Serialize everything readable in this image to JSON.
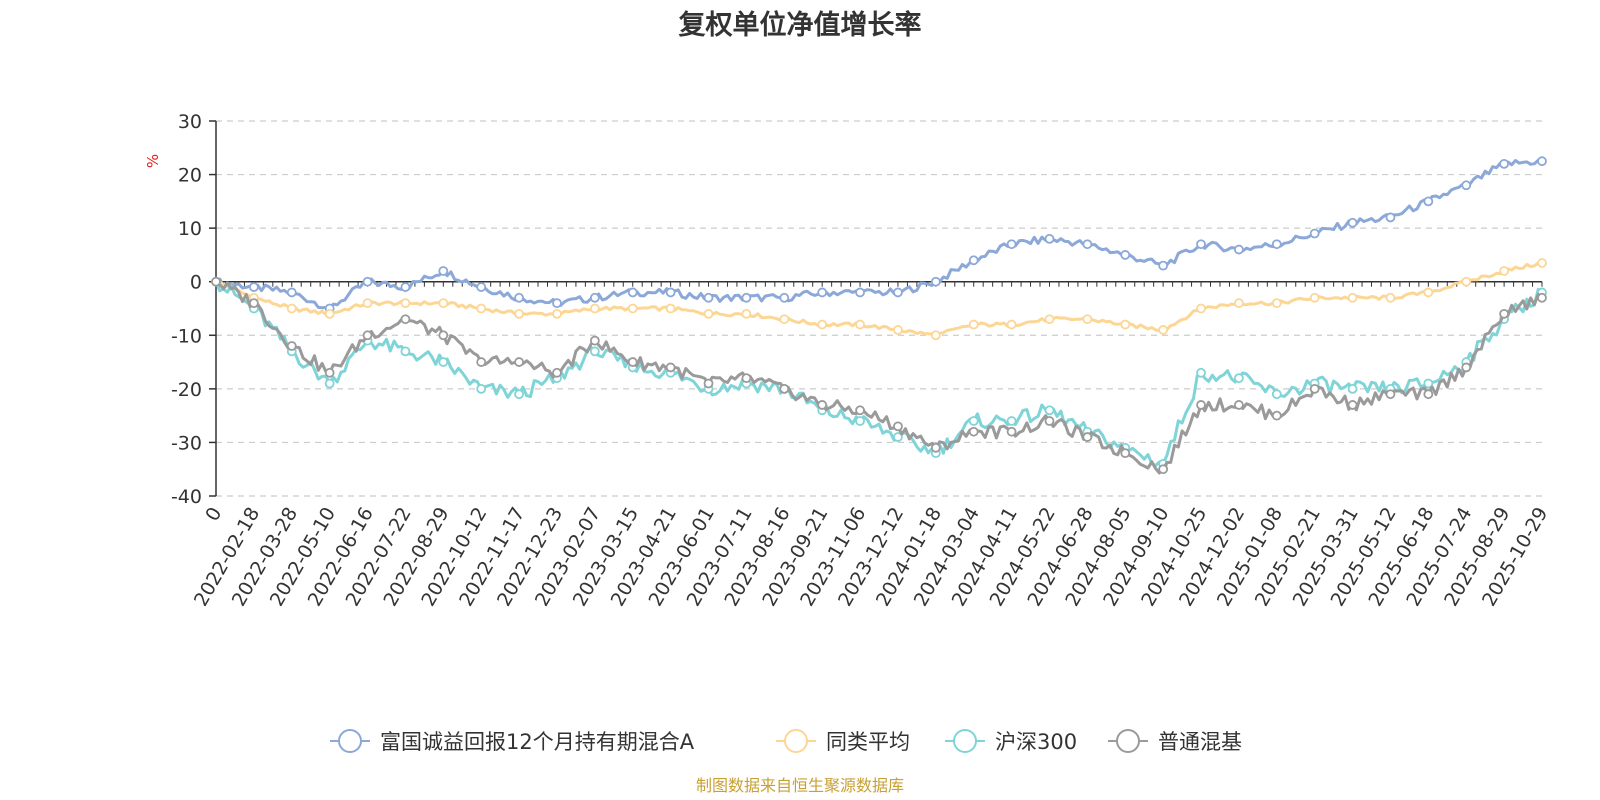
{
  "chart_data": {
    "type": "line",
    "title": "复权单位净值增长率",
    "ylabel": "%",
    "ylim": [
      -40,
      30
    ],
    "yticks": [
      30,
      20,
      10,
      0,
      -10,
      -20,
      -30,
      -40
    ],
    "grid": true,
    "legend_position": "bottom",
    "x_tick_labels": [
      "0",
      "2022-02-18",
      "2022-03-28",
      "2022-05-10",
      "2022-06-16",
      "2022-07-22",
      "2022-08-29",
      "2022-10-12",
      "2022-11-17",
      "2022-12-23",
      "2023-02-07",
      "2023-03-15",
      "2023-04-21",
      "2023-06-01",
      "2023-07-11",
      "2023-08-16",
      "2023-09-21",
      "2023-11-06",
      "2023-12-12",
      "2024-01-18",
      "2024-03-04",
      "2024-04-11",
      "2024-05-22",
      "2024-06-28",
      "2024-08-05",
      "2024-09-10",
      "2024-10-25",
      "2024-12-02",
      "2025-01-08",
      "2025-02-21",
      "2025-03-31",
      "2025-05-12",
      "2025-06-18",
      "2025-07-24",
      "2025-08-29",
      "2025-10-29"
    ],
    "x_index": [
      0,
      1,
      2,
      3,
      4,
      5,
      6,
      7,
      8,
      9,
      10,
      11,
      12,
      13,
      14,
      15,
      16,
      17,
      18,
      19,
      20,
      21,
      22,
      23,
      24,
      25,
      26,
      27,
      28,
      29,
      30,
      31,
      32,
      33,
      34,
      35
    ],
    "series": [
      {
        "name": "富国诚益回报12个月持有期混合A",
        "color": "#8ba8d8",
        "values": [
          0,
          -1,
          -2,
          -5,
          0,
          -1,
          2,
          -1,
          -3,
          -4,
          -3,
          -2,
          -2,
          -3,
          -3,
          -3,
          -2,
          -2,
          -2,
          0,
          4,
          7,
          8,
          7,
          5,
          3,
          7,
          6,
          7,
          9,
          11,
          12,
          15,
          18,
          22,
          22.5
        ]
      },
      {
        "name": "同类平均",
        "color": "#fcd694",
        "values": [
          0,
          -3,
          -5,
          -6,
          -4,
          -4,
          -4,
          -5,
          -6,
          -6,
          -5,
          -5,
          -5,
          -6,
          -6,
          -7,
          -8,
          -8,
          -9,
          -10,
          -8,
          -8,
          -7,
          -7,
          -8,
          -9,
          -5,
          -4,
          -4,
          -3,
          -3,
          -3,
          -2,
          0,
          2,
          3.5
        ]
      },
      {
        "name": "沪深300",
        "color": "#7fd4d8",
        "values": [
          0,
          -5,
          -13,
          -19,
          -11,
          -13,
          -15,
          -20,
          -21,
          -18,
          -13,
          -16,
          -17,
          -20,
          -19,
          -20,
          -24,
          -26,
          -29,
          -32,
          -26,
          -26,
          -24,
          -28,
          -31,
          -34,
          -17,
          -18,
          -21,
          -19,
          -20,
          -20,
          -19,
          -15,
          -7,
          -2
        ]
      },
      {
        "name": "普通混基",
        "color": "#9a9a9a",
        "values": [
          0,
          -4,
          -12,
          -17,
          -10,
          -7,
          -10,
          -15,
          -15,
          -17,
          -11,
          -15,
          -16,
          -19,
          -18,
          -20,
          -23,
          -24,
          -27,
          -31,
          -28,
          -28,
          -26,
          -29,
          -32,
          -35,
          -23,
          -23,
          -25,
          -20,
          -23,
          -21,
          -21,
          -16,
          -6,
          -3
        ]
      }
    ]
  },
  "source": "制图数据来自恒生聚源数据库"
}
